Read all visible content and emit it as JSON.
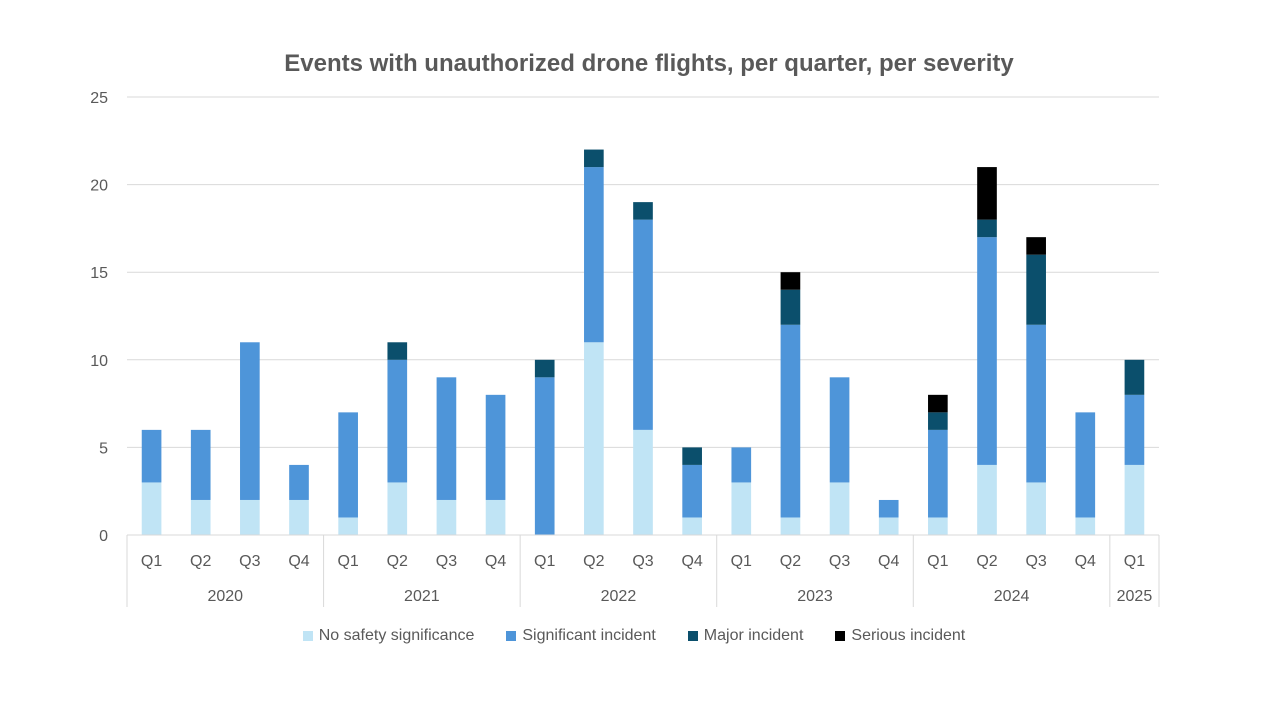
{
  "chart_data": {
    "type": "bar",
    "stacked": true,
    "title": "Events with unauthorized drone flights, per quarter, per severity",
    "xlabel": "",
    "ylabel": "",
    "ylim": [
      0,
      25
    ],
    "yticks": [
      "0",
      "5",
      "10",
      "15",
      "20",
      "25"
    ],
    "grid": true,
    "legend_position": "bottom",
    "groups": [
      {
        "label": "2020",
        "quarters": [
          "Q1",
          "Q2",
          "Q3",
          "Q4"
        ]
      },
      {
        "label": "2021",
        "quarters": [
          "Q1",
          "Q2",
          "Q3",
          "Q4"
        ]
      },
      {
        "label": "2022",
        "quarters": [
          "Q1",
          "Q2",
          "Q3",
          "Q4"
        ]
      },
      {
        "label": "2023",
        "quarters": [
          "Q1",
          "Q2",
          "Q3",
          "Q4"
        ]
      },
      {
        "label": "2024",
        "quarters": [
          "Q1",
          "Q2",
          "Q3",
          "Q4"
        ]
      },
      {
        "label": "2025",
        "quarters": [
          "Q1"
        ]
      }
    ],
    "series": [
      {
        "name": "No safety significance",
        "color": "#c0e4f5",
        "values": [
          3,
          2,
          2,
          2,
          1,
          3,
          2,
          2,
          0,
          11,
          6,
          1,
          3,
          1,
          3,
          1,
          1,
          4,
          3,
          1,
          4
        ]
      },
      {
        "name": "Significant incident",
        "color": "#4e95d9",
        "values": [
          3,
          4,
          9,
          2,
          6,
          7,
          7,
          6,
          9,
          10,
          12,
          3,
          2,
          11,
          6,
          1,
          5,
          13,
          9,
          6,
          4
        ]
      },
      {
        "name": "Major incident",
        "color": "#0b4f6c",
        "values": [
          0,
          0,
          0,
          0,
          0,
          1,
          0,
          0,
          1,
          1,
          1,
          1,
          0,
          2,
          0,
          0,
          1,
          1,
          4,
          0,
          2
        ]
      },
      {
        "name": "Serious incident",
        "color": "#000000",
        "values": [
          0,
          0,
          0,
          0,
          0,
          0,
          0,
          0,
          0,
          0,
          0,
          0,
          0,
          1,
          0,
          0,
          1,
          3,
          1,
          0,
          0
        ]
      }
    ]
  }
}
